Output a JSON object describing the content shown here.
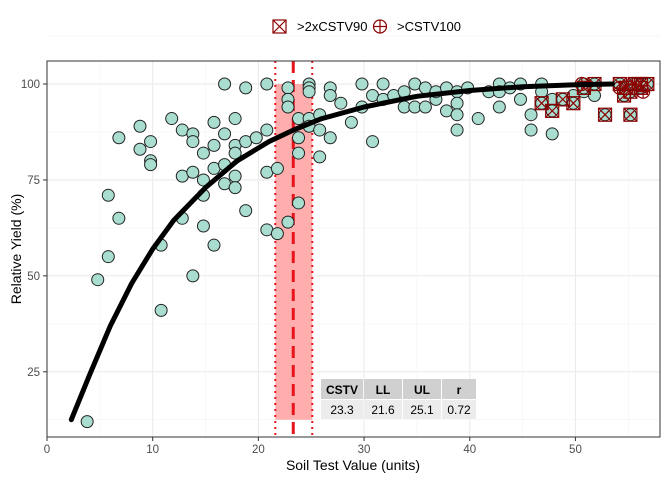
{
  "chart_data": {
    "type": "scatter",
    "title": "",
    "xlabel": "Soil Test Value (units)",
    "ylabel": "Relative Yield (%)",
    "xlim": [
      0,
      58
    ],
    "ylim": [
      8,
      106
    ],
    "xticks": [
      0,
      10,
      20,
      30,
      40,
      50
    ],
    "yticks": [
      25,
      50,
      75,
      100
    ],
    "grid": true,
    "legend_position": "top",
    "legend": [
      {
        "label": ">2xCSTV90",
        "symbol": "square-cross"
      },
      {
        "label": ">CSTV100",
        "symbol": "circle-plus"
      }
    ],
    "colors": {
      "point_fill": "#a8ddd0",
      "point_stroke": "#222222",
      "flag": "#8b0000",
      "band": "#ff9f9f",
      "cstv_line": "#e8141c",
      "curve": "#000000",
      "panel_grid": "#ebebeb",
      "table_header": "#d0d0d0",
      "table_body": "#ececec"
    },
    "curve": {
      "model": "exponential",
      "x_start": 2.3,
      "x_end": 53.5,
      "points": [
        [
          2.3,
          12.5
        ],
        [
          4,
          24
        ],
        [
          6,
          37
        ],
        [
          8,
          48
        ],
        [
          10,
          57
        ],
        [
          12,
          64.5
        ],
        [
          15,
          73
        ],
        [
          18,
          80
        ],
        [
          21,
          85
        ],
        [
          23.3,
          88
        ],
        [
          26,
          91
        ],
        [
          30,
          94
        ],
        [
          35,
          96.8
        ],
        [
          40,
          98.3
        ],
        [
          45,
          99.3
        ],
        [
          50,
          99.8
        ],
        [
          53.5,
          100
        ]
      ]
    },
    "cstv": {
      "value": 23.3,
      "ll": 21.6,
      "ul": 25.1
    },
    "table": {
      "headers": [
        "CSTV",
        "LL",
        "UL",
        "r"
      ],
      "values": [
        "23.3",
        "21.6",
        "25.1",
        "0.72"
      ]
    },
    "points": [
      [
        3.8,
        12
      ],
      [
        4.8,
        49
      ],
      [
        5.8,
        71
      ],
      [
        5.8,
        55
      ],
      [
        6.8,
        65
      ],
      [
        6.8,
        86
      ],
      [
        8.8,
        89
      ],
      [
        8.8,
        83
      ],
      [
        9.8,
        85
      ],
      [
        9.8,
        80
      ],
      [
        9.8,
        79
      ],
      [
        10.8,
        58
      ],
      [
        10.8,
        41
      ],
      [
        11.8,
        91
      ],
      [
        12.8,
        88
      ],
      [
        12.8,
        76
      ],
      [
        12.8,
        65
      ],
      [
        13.8,
        87
      ],
      [
        13.8,
        85
      ],
      [
        13.8,
        77
      ],
      [
        13.8,
        50
      ],
      [
        14.8,
        82
      ],
      [
        14.8,
        75
      ],
      [
        14.8,
        71
      ],
      [
        14.8,
        63
      ],
      [
        15.8,
        90
      ],
      [
        15.8,
        84
      ],
      [
        15.8,
        78
      ],
      [
        15.8,
        58
      ],
      [
        16.8,
        100
      ],
      [
        16.8,
        87
      ],
      [
        16.8,
        79
      ],
      [
        16.8,
        74
      ],
      [
        17.8,
        91
      ],
      [
        17.8,
        84
      ],
      [
        17.8,
        82
      ],
      [
        17.8,
        76
      ],
      [
        17.8,
        73
      ],
      [
        18.8,
        99
      ],
      [
        18.8,
        85
      ],
      [
        18.8,
        67
      ],
      [
        19.8,
        86
      ],
      [
        20.8,
        100
      ],
      [
        20.8,
        88
      ],
      [
        20.8,
        77
      ],
      [
        20.8,
        62
      ],
      [
        21.8,
        61
      ],
      [
        21.8,
        78
      ],
      [
        22.8,
        99
      ],
      [
        22.8,
        96
      ],
      [
        22.8,
        94
      ],
      [
        22.8,
        64
      ],
      [
        23.8,
        91
      ],
      [
        23.8,
        86
      ],
      [
        23.8,
        82
      ],
      [
        23.8,
        69
      ],
      [
        24.8,
        100
      ],
      [
        24.8,
        99
      ],
      [
        24.8,
        98
      ],
      [
        24.8,
        91
      ],
      [
        24.8,
        89
      ],
      [
        25.8,
        92
      ],
      [
        25.8,
        88
      ],
      [
        25.8,
        81
      ],
      [
        26.8,
        99
      ],
      [
        26.8,
        97
      ],
      [
        26.8,
        86
      ],
      [
        27.8,
        95
      ],
      [
        28.8,
        90
      ],
      [
        29.8,
        100
      ],
      [
        29.8,
        94
      ],
      [
        30.8,
        85
      ],
      [
        30.8,
        97
      ],
      [
        31.8,
        100
      ],
      [
        31.8,
        96
      ],
      [
        32.8,
        97
      ],
      [
        33.8,
        94
      ],
      [
        33.8,
        98
      ],
      [
        34.8,
        94
      ],
      [
        34.8,
        100
      ],
      [
        35.8,
        94
      ],
      [
        35.8,
        99
      ],
      [
        36.8,
        96
      ],
      [
        36.8,
        98
      ],
      [
        37.8,
        93
      ],
      [
        37.8,
        99
      ],
      [
        38.8,
        98
      ],
      [
        38.8,
        95
      ],
      [
        38.8,
        92
      ],
      [
        38.8,
        88
      ],
      [
        39.8,
        99
      ],
      [
        40.8,
        91
      ],
      [
        41.8,
        98
      ],
      [
        42.8,
        100
      ],
      [
        42.8,
        98
      ],
      [
        42.8,
        94
      ],
      [
        43.8,
        99
      ],
      [
        44.8,
        100
      ],
      [
        44.8,
        96
      ],
      [
        45.8,
        92
      ],
      [
        45.8,
        88
      ],
      [
        46.8,
        100
      ],
      [
        46.8,
        98
      ],
      [
        46.8,
        95
      ],
      [
        47.8,
        96
      ],
      [
        47.8,
        87
      ],
      [
        49.8,
        97
      ],
      [
        50.8,
        100
      ],
      [
        50.8,
        98
      ],
      [
        51.8,
        97
      ]
    ],
    "flagged_2xcstv90": [
      [
        46.8,
        95
      ],
      [
        47.8,
        93
      ],
      [
        48.8,
        96
      ],
      [
        49.8,
        95
      ],
      [
        50.8,
        99
      ],
      [
        51.8,
        100
      ],
      [
        52.8,
        92
      ],
      [
        54.2,
        100
      ],
      [
        54.8,
        99
      ],
      [
        55.2,
        98
      ],
      [
        55.6,
        100
      ],
      [
        56.2,
        99
      ],
      [
        56.2,
        100
      ],
      [
        55.2,
        92
      ],
      [
        54.6,
        97
      ],
      [
        56.8,
        100
      ]
    ],
    "flagged_cstv100": [
      [
        50.6,
        100
      ],
      [
        54.2,
        99
      ],
      [
        55.4,
        100
      ],
      [
        56.4,
        98
      ]
    ]
  }
}
